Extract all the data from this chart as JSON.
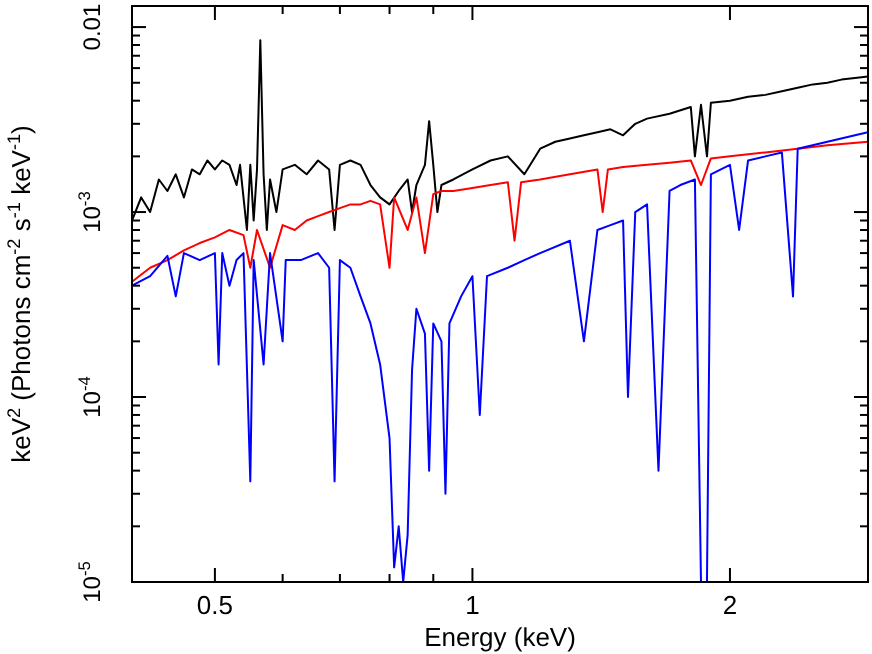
{
  "chart_data": {
    "type": "line",
    "xlabel": "Energy (keV)",
    "ylabel": "keV$^{2}$ (Photons cm$^{-2}$ s$^{-1}$ keV$^{-1}$)",
    "log": "xy",
    "grid": false,
    "marker": "none",
    "line_style": "solid",
    "xlim": [
      0.4,
      2.9
    ],
    "ylim": [
      1e-05,
      0.013
    ],
    "xticks": [
      {
        "value": 0.4,
        "label": null
      },
      0.5,
      {
        "value": 0.6,
        "label": null
      },
      {
        "value": 0.7,
        "label": null
      },
      {
        "value": 0.8,
        "label": null
      },
      {
        "value": 0.9,
        "label": null
      },
      1,
      2
    ],
    "yticks": [
      {
        "value": 1e-05,
        "label": "10$^{-5}$"
      },
      {
        "value": 2e-05,
        "label": null
      },
      {
        "value": 3e-05,
        "label": null
      },
      {
        "value": 4e-05,
        "label": null
      },
      {
        "value": 5e-05,
        "label": null
      },
      {
        "value": 6e-05,
        "label": null
      },
      {
        "value": 7e-05,
        "label": null
      },
      {
        "value": 8e-05,
        "label": null
      },
      {
        "value": 9e-05,
        "label": null
      },
      {
        "value": 0.0001,
        "label": "10$^{-4}$"
      },
      {
        "value": 0.0002,
        "label": null
      },
      {
        "value": 0.0003,
        "label": null
      },
      {
        "value": 0.0004,
        "label": null
      },
      {
        "value": 0.0005,
        "label": null
      },
      {
        "value": 0.0006,
        "label": null
      },
      {
        "value": 0.0007,
        "label": null
      },
      {
        "value": 0.0008,
        "label": null
      },
      {
        "value": 0.0009,
        "label": null
      },
      {
        "value": 0.001,
        "label": "10$^{-3}$"
      },
      {
        "value": 0.002,
        "label": null
      },
      {
        "value": 0.003,
        "label": null
      },
      {
        "value": 0.004,
        "label": null
      },
      {
        "value": 0.005,
        "label": null
      },
      {
        "value": 0.006,
        "label": null
      },
      {
        "value": 0.007,
        "label": null
      },
      {
        "value": 0.008,
        "label": null
      },
      {
        "value": 0.009,
        "label": null
      },
      0.01
    ],
    "series": [
      {
        "color": "#000000",
        "x": [
          0.4,
          0.41,
          0.42,
          0.43,
          0.44,
          0.45,
          0.46,
          0.47,
          0.48,
          0.49,
          0.5,
          0.51,
          0.52,
          0.53,
          0.535,
          0.545,
          0.55,
          0.555,
          0.56,
          0.565,
          0.57,
          0.575,
          0.58,
          0.59,
          0.6,
          0.62,
          0.64,
          0.66,
          0.68,
          0.69,
          0.7,
          0.72,
          0.74,
          0.76,
          0.78,
          0.8,
          0.82,
          0.84,
          0.85,
          0.86,
          0.88,
          0.89,
          0.9,
          0.91,
          0.92,
          0.95,
          1.0,
          1.05,
          1.1,
          1.15,
          1.2,
          1.25,
          1.3,
          1.35,
          1.4,
          1.45,
          1.5,
          1.55,
          1.6,
          1.7,
          1.8,
          1.82,
          1.85,
          1.88,
          1.9,
          2.0,
          2.1,
          2.2,
          2.3,
          2.4,
          2.5,
          2.6,
          2.7,
          2.8,
          2.9
        ],
        "values": [
          0.0009,
          0.0012,
          0.001,
          0.0015,
          0.0013,
          0.0016,
          0.0012,
          0.0017,
          0.0016,
          0.0019,
          0.0017,
          0.0019,
          0.0018,
          0.0014,
          0.0018,
          0.0008,
          0.0018,
          0.0009,
          0.0017,
          0.0085,
          0.0016,
          0.0008,
          0.0015,
          0.001,
          0.0017,
          0.0018,
          0.0016,
          0.0019,
          0.0017,
          0.0008,
          0.0018,
          0.0019,
          0.0018,
          0.0014,
          0.0012,
          0.0011,
          0.0013,
          0.0015,
          0.001,
          0.0014,
          0.0018,
          0.0031,
          0.0018,
          0.001,
          0.0014,
          0.0015,
          0.0017,
          0.0019,
          0.002,
          0.0016,
          0.0022,
          0.0024,
          0.0025,
          0.0026,
          0.0027,
          0.0028,
          0.0026,
          0.003,
          0.0032,
          0.0034,
          0.0037,
          0.002,
          0.0038,
          0.002,
          0.0039,
          0.004,
          0.0042,
          0.0043,
          0.0045,
          0.0047,
          0.0049,
          0.005,
          0.0052,
          0.0053,
          0.0054
        ]
      },
      {
        "color": "#ff0000",
        "x": [
          0.4,
          0.42,
          0.44,
          0.46,
          0.48,
          0.5,
          0.52,
          0.54,
          0.55,
          0.56,
          0.58,
          0.6,
          0.62,
          0.64,
          0.66,
          0.68,
          0.7,
          0.72,
          0.74,
          0.76,
          0.78,
          0.8,
          0.81,
          0.84,
          0.86,
          0.88,
          0.9,
          0.92,
          0.95,
          1.0,
          1.05,
          1.1,
          1.12,
          1.14,
          1.2,
          1.3,
          1.4,
          1.42,
          1.44,
          1.5,
          1.6,
          1.7,
          1.8,
          1.85,
          1.9,
          2.0,
          2.2,
          2.4,
          2.6,
          2.9
        ],
        "values": [
          0.00042,
          0.0005,
          0.00055,
          0.00062,
          0.00068,
          0.00073,
          0.0008,
          0.00075,
          0.0005,
          0.0008,
          0.0005,
          0.00085,
          0.0008,
          0.0009,
          0.00095,
          0.001,
          0.00105,
          0.0011,
          0.0011,
          0.00115,
          0.0011,
          0.0005,
          0.0012,
          0.0008,
          0.0012,
          0.0006,
          0.00125,
          0.0013,
          0.0013,
          0.00135,
          0.0014,
          0.00145,
          0.0007,
          0.00145,
          0.0015,
          0.0016,
          0.0017,
          0.001,
          0.0017,
          0.00175,
          0.0018,
          0.00185,
          0.0019,
          0.0014,
          0.00195,
          0.002,
          0.0021,
          0.0022,
          0.0023,
          0.0024
        ]
      },
      {
        "color": "#0000ff",
        "x": [
          0.4,
          0.42,
          0.44,
          0.45,
          0.46,
          0.48,
          0.5,
          0.505,
          0.51,
          0.52,
          0.53,
          0.54,
          0.55,
          0.555,
          0.57,
          0.58,
          0.6,
          0.605,
          0.63,
          0.66,
          0.68,
          0.69,
          0.7,
          0.72,
          0.74,
          0.76,
          0.78,
          0.8,
          0.81,
          0.82,
          0.83,
          0.84,
          0.85,
          0.86,
          0.88,
          0.89,
          0.9,
          0.92,
          0.93,
          0.94,
          0.97,
          1.0,
          1.02,
          1.04,
          1.1,
          1.15,
          1.2,
          1.3,
          1.35,
          1.4,
          1.45,
          1.5,
          1.52,
          1.55,
          1.6,
          1.65,
          1.7,
          1.75,
          1.82,
          1.85,
          1.88,
          1.9,
          2.0,
          2.05,
          2.1,
          2.2,
          2.3,
          2.37,
          2.4,
          2.6,
          2.8,
          2.9
        ],
        "values": [
          0.0004,
          0.00045,
          0.00058,
          0.00035,
          0.0006,
          0.00055,
          0.0006,
          0.00015,
          0.0006,
          0.0004,
          0.00055,
          0.0006,
          3.5e-05,
          0.00055,
          0.00015,
          0.0006,
          0.0002,
          0.00055,
          0.00055,
          0.0006,
          0.0005,
          3.5e-05,
          0.00055,
          0.0005,
          0.00035,
          0.00025,
          0.00015,
          6e-05,
          1.2e-05,
          2e-05,
          1e-05,
          1.8e-05,
          0.00014,
          0.0003,
          0.00022,
          4e-05,
          0.00025,
          0.0002,
          3e-05,
          0.00025,
          0.00035,
          0.00045,
          8e-05,
          0.00045,
          0.0005,
          0.00055,
          0.0006,
          0.0007,
          0.0002,
          0.0008,
          0.00085,
          0.0009,
          0.0001,
          0.001,
          0.0011,
          4e-05,
          0.0013,
          0.0014,
          0.0015,
          1e-05,
          1e-05,
          0.0016,
          0.0018,
          0.0008,
          0.0019,
          0.002,
          0.0021,
          0.00035,
          0.0022,
          0.0024,
          0.0026,
          0.0027
        ]
      }
    ]
  }
}
